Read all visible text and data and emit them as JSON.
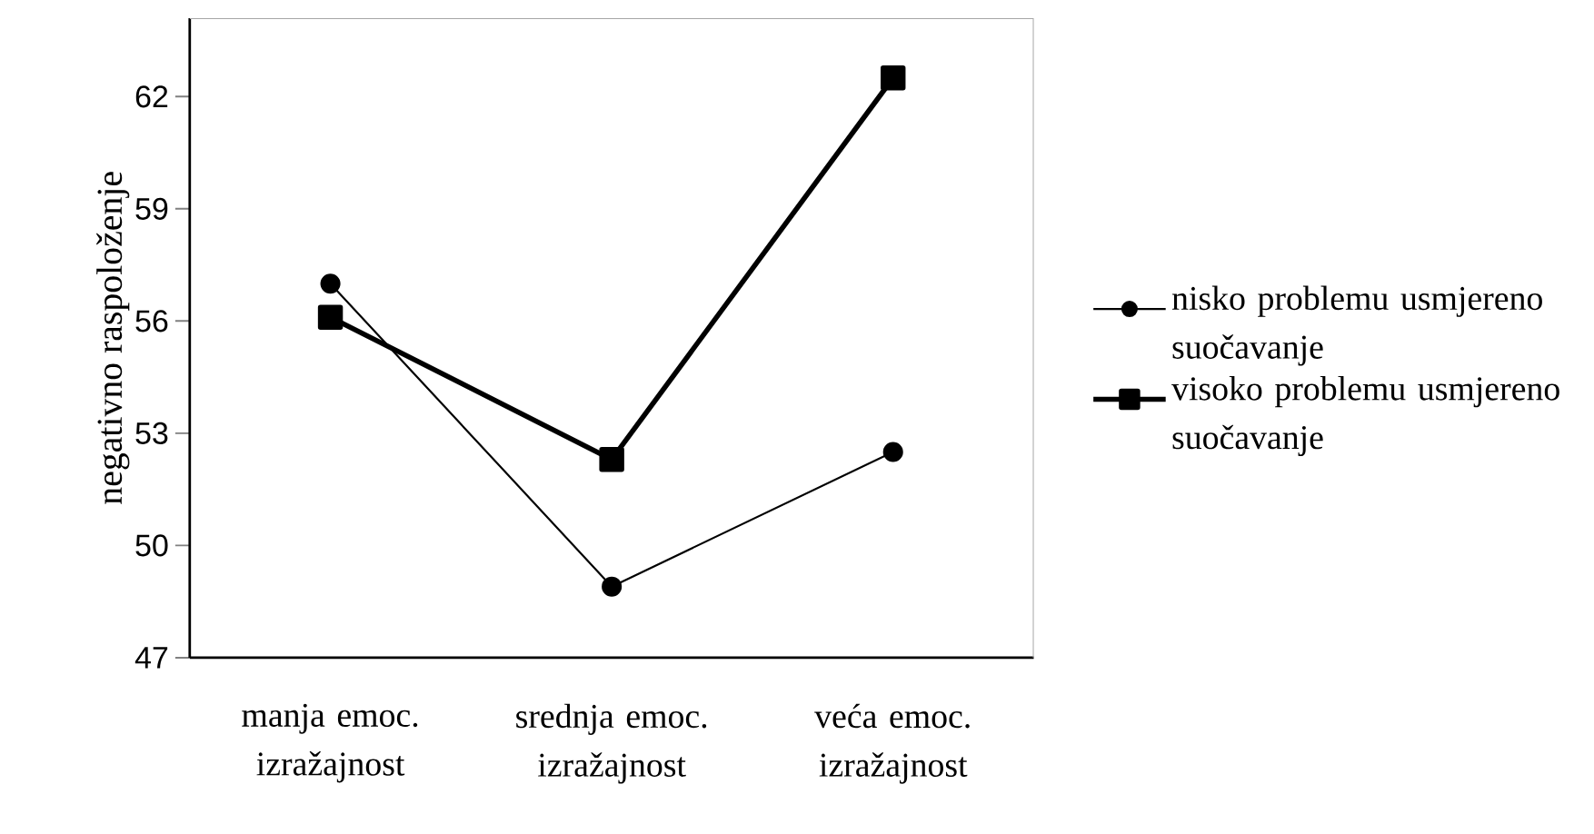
{
  "chart_data": {
    "type": "line",
    "ylabel": "negativno raspoloženje",
    "categories": [
      "manja emoc. izražajnost",
      "srednja emoc. izražajnost",
      "veća emoc. izražajnost"
    ],
    "series": [
      {
        "name": "nisko problemu usmjereno suočavanje",
        "color": "#000000",
        "marker": "circle",
        "values": [
          57.0,
          48.9,
          52.5
        ]
      },
      {
        "name": "visoko problemu usmjereno suočavanje",
        "color": "#000000",
        "marker": "square",
        "values": [
          56.1,
          52.3,
          62.5
        ]
      }
    ],
    "ylim": [
      47,
      64.1
    ],
    "yticks": [
      47,
      50,
      53,
      56,
      59,
      62
    ],
    "grid": false,
    "legend": "right",
    "line_style": "solid"
  }
}
